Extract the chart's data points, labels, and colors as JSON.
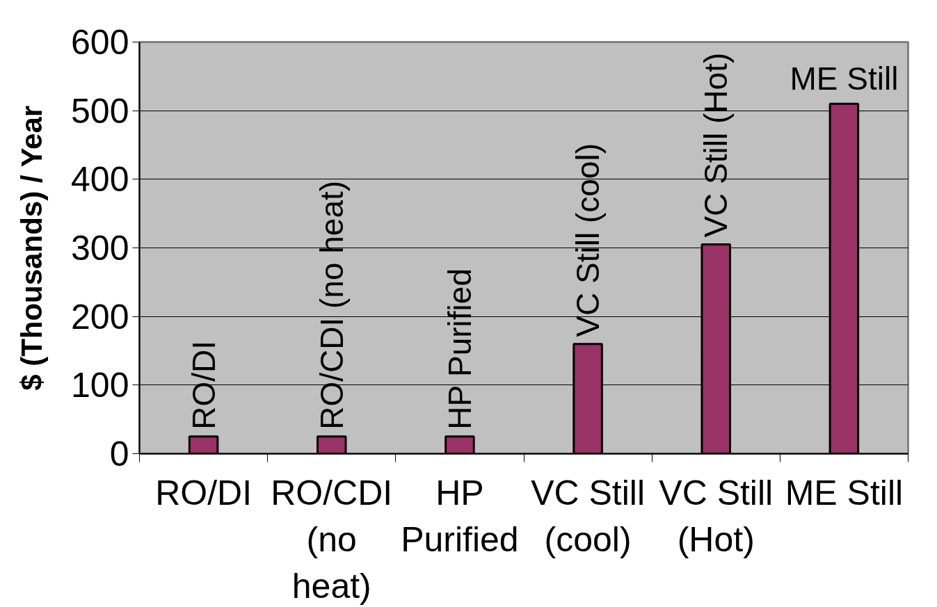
{
  "chart_data": {
    "type": "bar",
    "categories": [
      "RO/DI",
      "RO/CDI (no heat)",
      "HP Purified",
      "VC Still (cool)",
      "VC Still (Hot)",
      "ME Still"
    ],
    "values": [
      25,
      25,
      25,
      160,
      305,
      510
    ],
    "value_labels": [
      "RO/DI",
      "RO/CDI (no heat)",
      "HP Purified",
      "VC Still (cool)",
      "VC Still (Hot)",
      "ME Still"
    ],
    "color": "#993366",
    "ylabel": "$ (Thousands) / Year",
    "ylim": [
      0,
      600
    ],
    "yticks": [
      0,
      100,
      200,
      300,
      400,
      500,
      600
    ],
    "grid": "y"
  }
}
